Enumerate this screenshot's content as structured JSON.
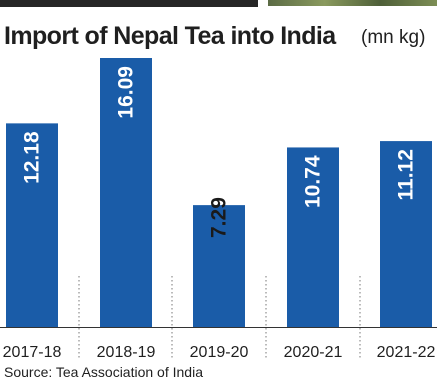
{
  "title": "Import of Nepal Tea into India",
  "unit": "(mn kg)",
  "source": "Source: Tea Association of India",
  "chart_data": {
    "type": "bar",
    "categories": [
      "2017-18",
      "2018-19",
      "2019-20",
      "2020-21",
      "2021-22"
    ],
    "values": [
      12.18,
      16.09,
      7.29,
      10.74,
      11.12
    ],
    "value_labels": [
      "12.18",
      "16.09",
      "7.29",
      "10.74",
      "11.12"
    ],
    "title": "Import of Nepal Tea into India",
    "unit": "(mn kg)",
    "bar_color": "#1a5ca8",
    "ylim": [
      0,
      16.09
    ],
    "grid": false,
    "legend": "none"
  }
}
